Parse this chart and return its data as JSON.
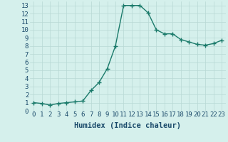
{
  "x": [
    0,
    1,
    2,
    3,
    4,
    5,
    6,
    7,
    8,
    9,
    10,
    11,
    12,
    13,
    14,
    15,
    16,
    17,
    18,
    19,
    20,
    21,
    22,
    23
  ],
  "y": [
    1.0,
    0.9,
    0.7,
    0.9,
    1.0,
    1.1,
    1.2,
    2.5,
    3.5,
    5.2,
    8.0,
    13.0,
    13.0,
    13.0,
    12.1,
    10.0,
    9.5,
    9.5,
    8.8,
    8.5,
    8.2,
    8.1,
    8.3,
    8.7
  ],
  "line_color": "#1a7a6a",
  "marker": "+",
  "marker_size": 4,
  "marker_lw": 1.0,
  "bg_color": "#d5f0ec",
  "grid_color": "#b8d8d4",
  "xlabel": "Humidex (Indice chaleur)",
  "xlabel_color": "#1a4a6a",
  "xlabel_fontsize": 7.5,
  "ylabel_ticks": [
    0,
    1,
    2,
    3,
    4,
    5,
    6,
    7,
    8,
    9,
    10,
    11,
    12,
    13
  ],
  "xlim": [
    -0.5,
    23.5
  ],
  "ylim": [
    0,
    13.5
  ],
  "tick_fontsize": 6.5
}
